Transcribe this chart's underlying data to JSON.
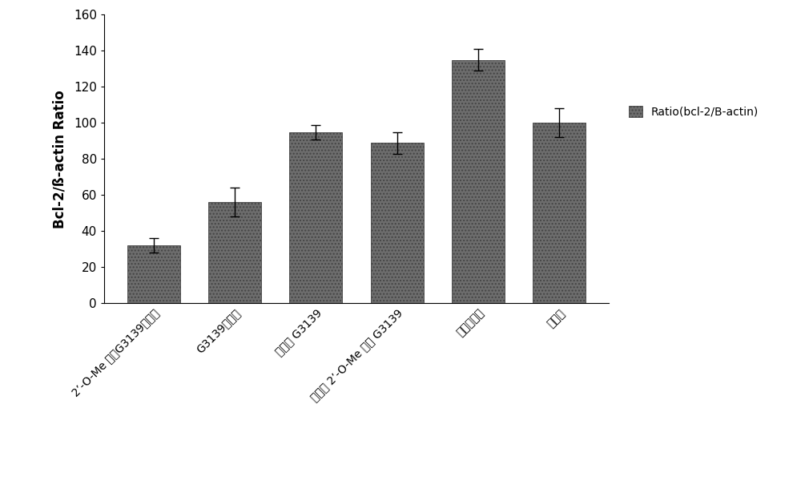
{
  "categories": [
    "2’-O-Me 修饰G3139纳米粒",
    "G3139纳米粒",
    "游离的 G3139",
    "游离的 2’-O-Me 修饰 G3139",
    "空白纳米粒",
    "对照组"
  ],
  "values": [
    32,
    56,
    95,
    89,
    135,
    100
  ],
  "errors": [
    4,
    8,
    4,
    6,
    6,
    8
  ],
  "bar_color": "#6d6d6d",
  "ylabel": "Bcl-2/ß-actin Ratio",
  "ylim": [
    0,
    160
  ],
  "yticks": [
    0,
    20,
    40,
    60,
    80,
    100,
    120,
    140,
    160
  ],
  "legend_label": "Ratio(bcl-2/B-actin)",
  "legend_color": "#6d6d6d",
  "background_color": "#ffffff",
  "bar_width": 0.65,
  "figsize": [
    10,
    6.1
  ],
  "dpi": 100
}
